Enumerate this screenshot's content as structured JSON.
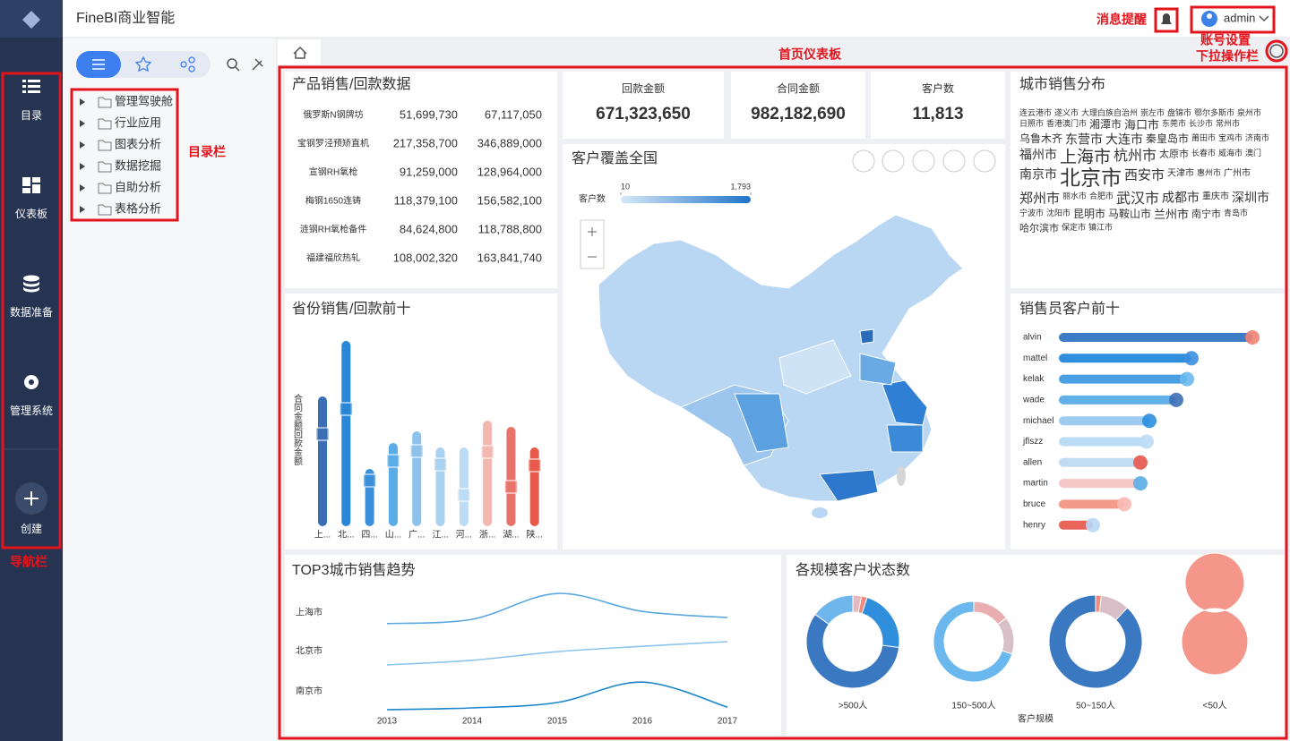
{
  "app": {
    "logo_title": "FineBI商业智能",
    "user": "admin"
  },
  "callouts": {
    "bell": "消息提醒",
    "account": "账号设置",
    "more": "下拉操作栏",
    "dashboard": "首页仪表板",
    "catalog": "目录栏",
    "nav": "导航栏"
  },
  "nav": [
    "目录",
    "仪表板",
    "数据准备",
    "管理系统",
    "创建"
  ],
  "catalog": [
    "管理驾驶舱",
    "行业应用",
    "图表分析",
    "数据挖掘",
    "自助分析",
    "表格分析"
  ],
  "dashboard": {
    "product": {
      "title": "产品销售/回款数据",
      "rows": [
        [
          "俄罗斯N钢牌坊",
          "51,699,730",
          "67,117,050"
        ],
        [
          "宝钢罗泾预矫直机",
          "217,358,700",
          "346,889,000"
        ],
        [
          "宣钢RH氧枪",
          "91,259,000",
          "128,964,000"
        ],
        [
          "梅钢1650连铸",
          "118,379,100",
          "156,582,100"
        ],
        [
          "涟钢RH氧枪备件",
          "84,624,800",
          "118,788,800"
        ],
        [
          "福建福欣热轧",
          "108,002,320",
          "163,841,740"
        ]
      ],
      "row_colors": [
        "#1f7ac9",
        "#e0453a",
        "#1f7ac9",
        "#1f7ac9",
        "#1f7ac9",
        "#1f7ac9"
      ]
    },
    "kpis": [
      {
        "label": "回款金额",
        "value": "671,323,650",
        "color": "#1aa3e0"
      },
      {
        "label": "合同金额",
        "value": "982,182,690",
        "color": "#e8512f"
      },
      {
        "label": "客户数",
        "value": "11,813",
        "color": "#f38675"
      }
    ],
    "map": {
      "title": "客户覆盖全国",
      "legend_title": "客户数",
      "ticks": [
        10,
        {
          "value": 1793,
          "label": "1,793"
        }
      ]
    },
    "wordcloud": {
      "title": "城市销售分布",
      "words": [
        {
          "text": "连云港市",
          "weight": 9
        },
        {
          "text": "遂义市",
          "weight": 9
        },
        {
          "text": "大理白族自治州",
          "weight": 9
        },
        {
          "text": "崇左市",
          "weight": 9
        },
        {
          "text": "盘锦市",
          "weight": 9
        },
        {
          "text": "鄂尔多斯市",
          "weight": 9
        },
        {
          "text": "泉州市",
          "weight": 9
        },
        {
          "text": "日照市",
          "weight": 9
        },
        {
          "text": "香港澳门市",
          "weight": 9
        },
        {
          "text": "湘潭市",
          "weight": 12
        },
        {
          "text": "海口市",
          "weight": 13
        },
        {
          "text": "东莞市",
          "weight": 9
        },
        {
          "text": "长沙市",
          "weight": 9
        },
        {
          "text": "常州市",
          "weight": 9
        },
        {
          "text": "乌鲁木齐",
          "weight": 12
        },
        {
          "text": "东营市",
          "weight": 14
        },
        {
          "text": "大连市",
          "weight": 14
        },
        {
          "text": "秦皇岛市",
          "weight": 12
        },
        {
          "text": "莆田市",
          "weight": 9
        },
        {
          "text": "宝鸡市",
          "weight": 9
        },
        {
          "text": "济南市",
          "weight": 9
        },
        {
          "text": "福州市",
          "weight": 14
        },
        {
          "text": "上海市",
          "weight": 19
        },
        {
          "text": "杭州市",
          "weight": 16
        },
        {
          "text": "太原市",
          "weight": 11
        },
        {
          "text": "长春市",
          "weight": 9
        },
        {
          "text": "威海市",
          "weight": 9
        },
        {
          "text": "澳门",
          "weight": 9
        },
        {
          "text": "南京市",
          "weight": 14
        },
        {
          "text": "北京市",
          "weight": 23
        },
        {
          "text": "西安市",
          "weight": 15
        },
        {
          "text": "天津市",
          "weight": 10
        },
        {
          "text": "惠州市",
          "weight": 9
        },
        {
          "text": "广州市",
          "weight": 10
        },
        {
          "text": "郑州市",
          "weight": 15
        },
        {
          "text": "丽水市",
          "weight": 9
        },
        {
          "text": "合肥市",
          "weight": 9
        },
        {
          "text": "武汉市",
          "weight": 16
        },
        {
          "text": "成都市",
          "weight": 14
        },
        {
          "text": "重庆市",
          "weight": 10
        },
        {
          "text": "深圳市",
          "weight": 14
        },
        {
          "text": "宁波市",
          "weight": 9
        },
        {
          "text": "沈阳市",
          "weight": 9
        },
        {
          "text": "昆明市",
          "weight": 12
        },
        {
          "text": "马鞍山市",
          "weight": 12
        },
        {
          "text": "兰州市",
          "weight": 13
        },
        {
          "text": "南宁市",
          "weight": 11
        },
        {
          "text": "青岛市",
          "weight": 9
        },
        {
          "text": "哈尔滨市",
          "weight": 11
        },
        {
          "text": "保定市",
          "weight": 9
        },
        {
          "text": "镇江市",
          "weight": 9
        }
      ]
    },
    "province": {
      "title": "省份销售/回款前十",
      "axis_label": "合同金额回款金额",
      "categories": [
        "上...",
        "北...",
        "四...",
        "山...",
        "广...",
        "江...",
        "河...",
        "浙...",
        "湖...",
        "陕..."
      ],
      "ylim": [
        0,
        220
      ],
      "contract": [
        145,
        207,
        64,
        93,
        106,
        88,
        88,
        118,
        111,
        88
      ],
      "payment": [
        103,
        131,
        51,
        73,
        84,
        69,
        35,
        83,
        44,
        68
      ],
      "colors": [
        "#3a6fb5",
        "#2a86d6",
        "#3c8fd9",
        "#5aade6",
        "#8cc2ec",
        "#a9d1f0",
        "#bcdcf4",
        "#f2b8b0",
        "#e8736a",
        "#e65a4b"
      ]
    },
    "sales_rep": {
      "title": "销售员客户前十",
      "categories": [
        "alvin",
        "mattel",
        "kelak",
        "wade",
        "michael",
        "jflszz",
        "allen",
        "martin",
        "bruce",
        "henry"
      ],
      "values": [
        216,
        148,
        143,
        131,
        101,
        98,
        91,
        91,
        73,
        38
      ],
      "xlim": [
        0,
        230
      ],
      "bar_colors": [
        "#3d7cc4",
        "#2f8fdc",
        "#4aa0e3",
        "#62b0ea",
        "#9ccaf0",
        "#bcdcf6",
        "#c2dcf3",
        "#f4c6c6",
        "#f49a8a",
        "#e9645a"
      ],
      "dot_colors": [
        "#f08272",
        "#3d8fe0",
        "#6ab8ee",
        "#3d6fb5",
        "#2a8ee0",
        "#bcdcf6",
        "#e8574f",
        "#5aade6",
        "#f8b8b0",
        "#b8d8f5"
      ]
    },
    "trend": {
      "title": "TOP3城市销售趋势",
      "x": [
        2013,
        2014,
        2015,
        2016,
        2017
      ],
      "xlim": [
        2013,
        2017
      ],
      "xticks": [
        2013,
        2014,
        2015,
        2016,
        2017
      ],
      "ylim": [
        0,
        100
      ],
      "series": [
        {
          "name": "上海市",
          "color": "#5aa8e0",
          "values": [
            8,
            20,
            92,
            42,
            25
          ]
        },
        {
          "name": "北京市",
          "color": "#8cc4ec",
          "values": [
            5,
            18,
            42,
            57,
            70
          ]
        },
        {
          "name": "南京市",
          "color": "#1b86cc",
          "values": [
            5,
            10,
            25,
            82,
            12
          ]
        }
      ]
    },
    "scale": {
      "title": "各规模客户状态数",
      "categories": [
        ">500人",
        "150~500人",
        "50~150人",
        "<50人"
      ],
      "axis_label": "客户规模",
      "donuts": [
        {
          "values": [
            3,
            2,
            22,
            58,
            15
          ],
          "colors": [
            "#e8b8c0",
            "#f08a7c",
            "#2f8fdc",
            "#3a78c2",
            "#6fb6ec"
          ]
        },
        {
          "values": [
            15,
            15,
            70
          ],
          "colors": [
            "#e8aeb0",
            "#d8c0c8",
            "#6ab8ee"
          ]
        },
        {
          "values": [
            2,
            10,
            88
          ],
          "colors": [
            "#f08a7c",
            "#d8bec6",
            "#3a78c2"
          ]
        },
        {
          "values": [
            100
          ],
          "colors": [
            "#f4968a"
          ]
        }
      ]
    }
  }
}
